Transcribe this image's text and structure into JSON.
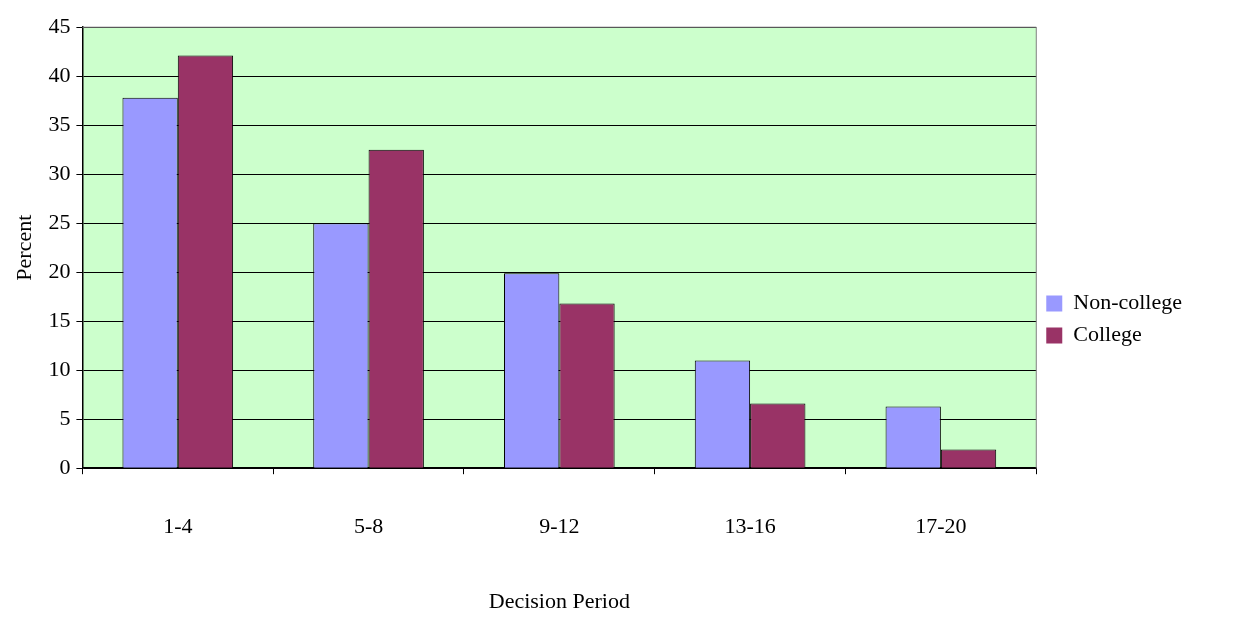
{
  "chart_data": {
    "type": "bar",
    "xlabel": "Decision Period",
    "ylabel": "Percent",
    "categories": [
      "1-4",
      "5-8",
      "9-12",
      "13-16",
      "17-20"
    ],
    "series": [
      {
        "name": "Non-college",
        "color": "#9999ff",
        "values": [
          37.8,
          25,
          19.9,
          11,
          6.3
        ]
      },
      {
        "name": "College",
        "color": "#993366",
        "values": [
          42.1,
          32.5,
          16.8,
          6.6,
          1.9
        ]
      }
    ],
    "ylim": [
      0,
      45
    ],
    "yticks": [
      0,
      5,
      10,
      15,
      20,
      25,
      30,
      35,
      40,
      45
    ],
    "grid": "y",
    "legend": "right"
  }
}
